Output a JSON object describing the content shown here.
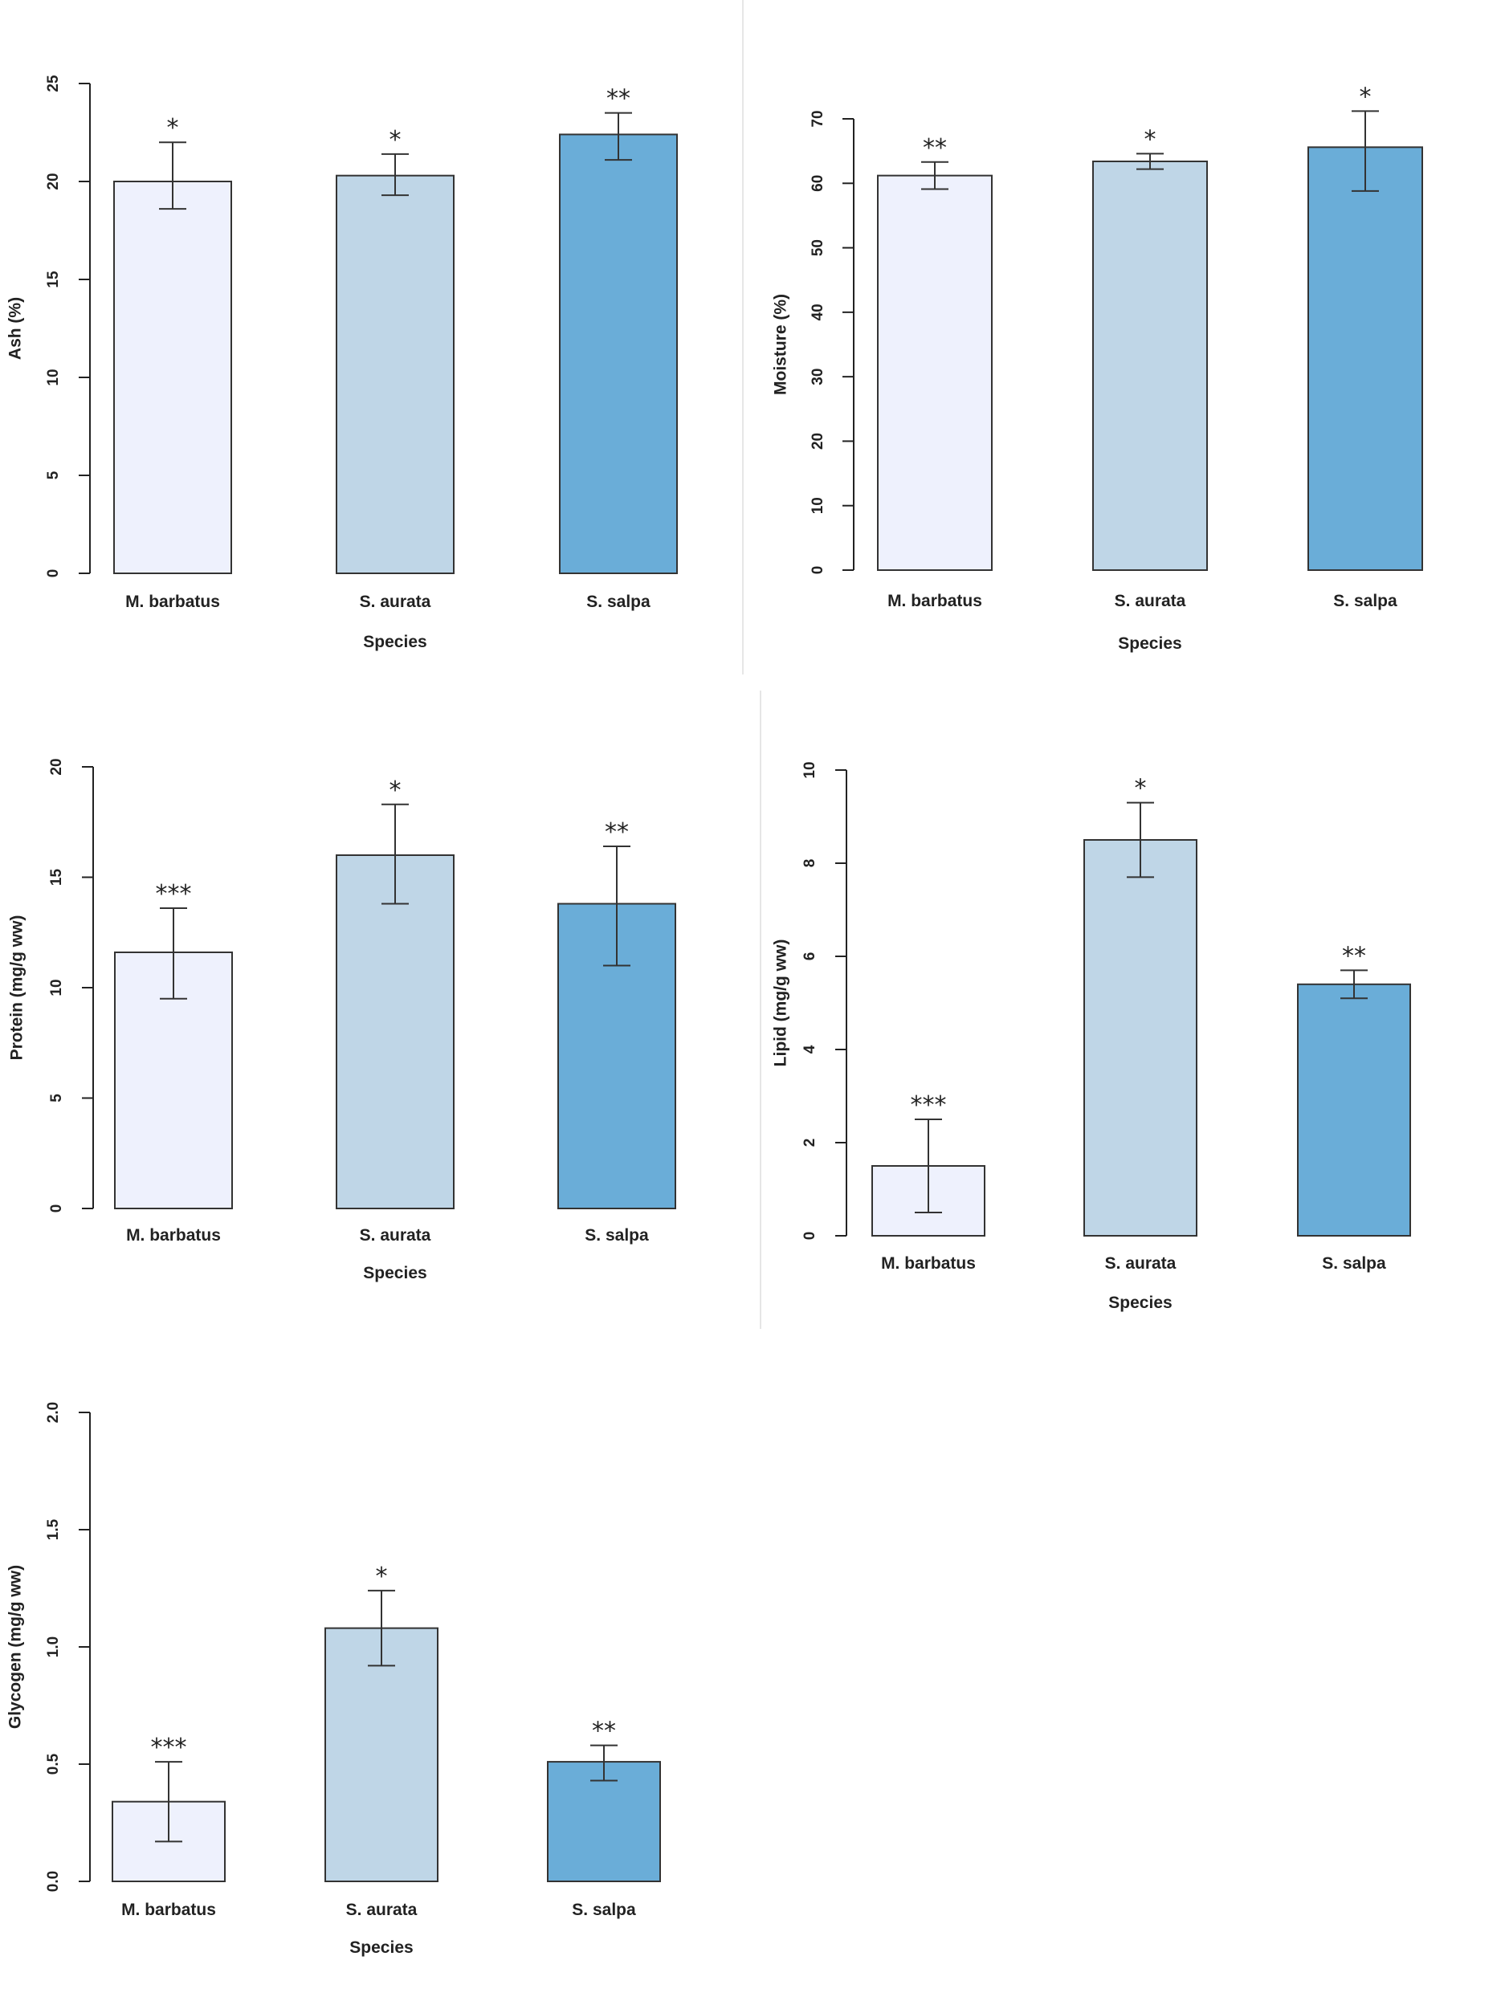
{
  "colors": {
    "bar_fill": [
      "#eef1fd",
      "#bfd6e7",
      "#6aadd8"
    ],
    "axis": "#222222",
    "divider": "#e6e6e6"
  },
  "chart_data": [
    {
      "type": "bar",
      "categories": [
        "M. barbatus",
        "S. aurata",
        "S. salpa"
      ],
      "values": [
        20.0,
        20.3,
        22.4
      ],
      "errors_low": [
        18.6,
        19.3,
        21.1
      ],
      "errors_high": [
        22.0,
        21.4,
        23.5
      ],
      "significance": [
        "*",
        "*",
        "**"
      ],
      "xlabel": "Species",
      "ylabel": "Ash (%)",
      "ylim": [
        0,
        25
      ],
      "yticks": [
        0,
        5,
        10,
        15,
        20,
        25
      ]
    },
    {
      "type": "bar",
      "categories": [
        "M. barbatus",
        "S. aurata",
        "S. salpa"
      ],
      "values": [
        61.2,
        63.4,
        65.6
      ],
      "errors_low": [
        59.1,
        62.2,
        58.8
      ],
      "errors_high": [
        63.3,
        64.6,
        71.2
      ],
      "significance": [
        "**",
        "*",
        "*"
      ],
      "xlabel": "Species",
      "ylabel": "Moisture (%)",
      "ylim": [
        0,
        70
      ],
      "yticks": [
        0,
        10,
        20,
        30,
        40,
        50,
        60,
        70
      ]
    },
    {
      "type": "bar",
      "categories": [
        "M. barbatus",
        "S. aurata",
        "S. salpa"
      ],
      "values": [
        11.6,
        16.0,
        13.8
      ],
      "errors_low": [
        9.5,
        13.8,
        11.0
      ],
      "errors_high": [
        13.6,
        18.3,
        16.4
      ],
      "significance": [
        "***",
        "*",
        "**"
      ],
      "xlabel": "Species",
      "ylabel": "Protein (mg/g ww)",
      "ylim": [
        0,
        20
      ],
      "yticks": [
        0,
        5,
        10,
        15,
        20
      ]
    },
    {
      "type": "bar",
      "categories": [
        "M. barbatus",
        "S. aurata",
        "S. salpa"
      ],
      "values": [
        1.5,
        8.5,
        5.4
      ],
      "errors_low": [
        0.5,
        7.7,
        5.1
      ],
      "errors_high": [
        2.5,
        9.3,
        5.7
      ],
      "significance": [
        "***",
        "*",
        "**"
      ],
      "xlabel": "Species",
      "ylabel": "Lipid (mg/g ww)",
      "ylim": [
        0,
        10
      ],
      "yticks": [
        0,
        2,
        4,
        6,
        8,
        10
      ]
    },
    {
      "type": "bar",
      "categories": [
        "M. barbatus",
        "S. aurata",
        "S. salpa"
      ],
      "values": [
        0.34,
        1.08,
        0.51
      ],
      "errors_low": [
        0.17,
        0.92,
        0.43
      ],
      "errors_high": [
        0.51,
        1.24,
        0.58
      ],
      "significance": [
        "***",
        "*",
        "**"
      ],
      "xlabel": "Species",
      "ylabel": "Glycogen (mg/g ww)",
      "ylim": [
        0,
        2.0
      ],
      "yticks": [
        "0.0",
        "0.5",
        "1.0",
        "1.5",
        "2.0"
      ]
    }
  ]
}
